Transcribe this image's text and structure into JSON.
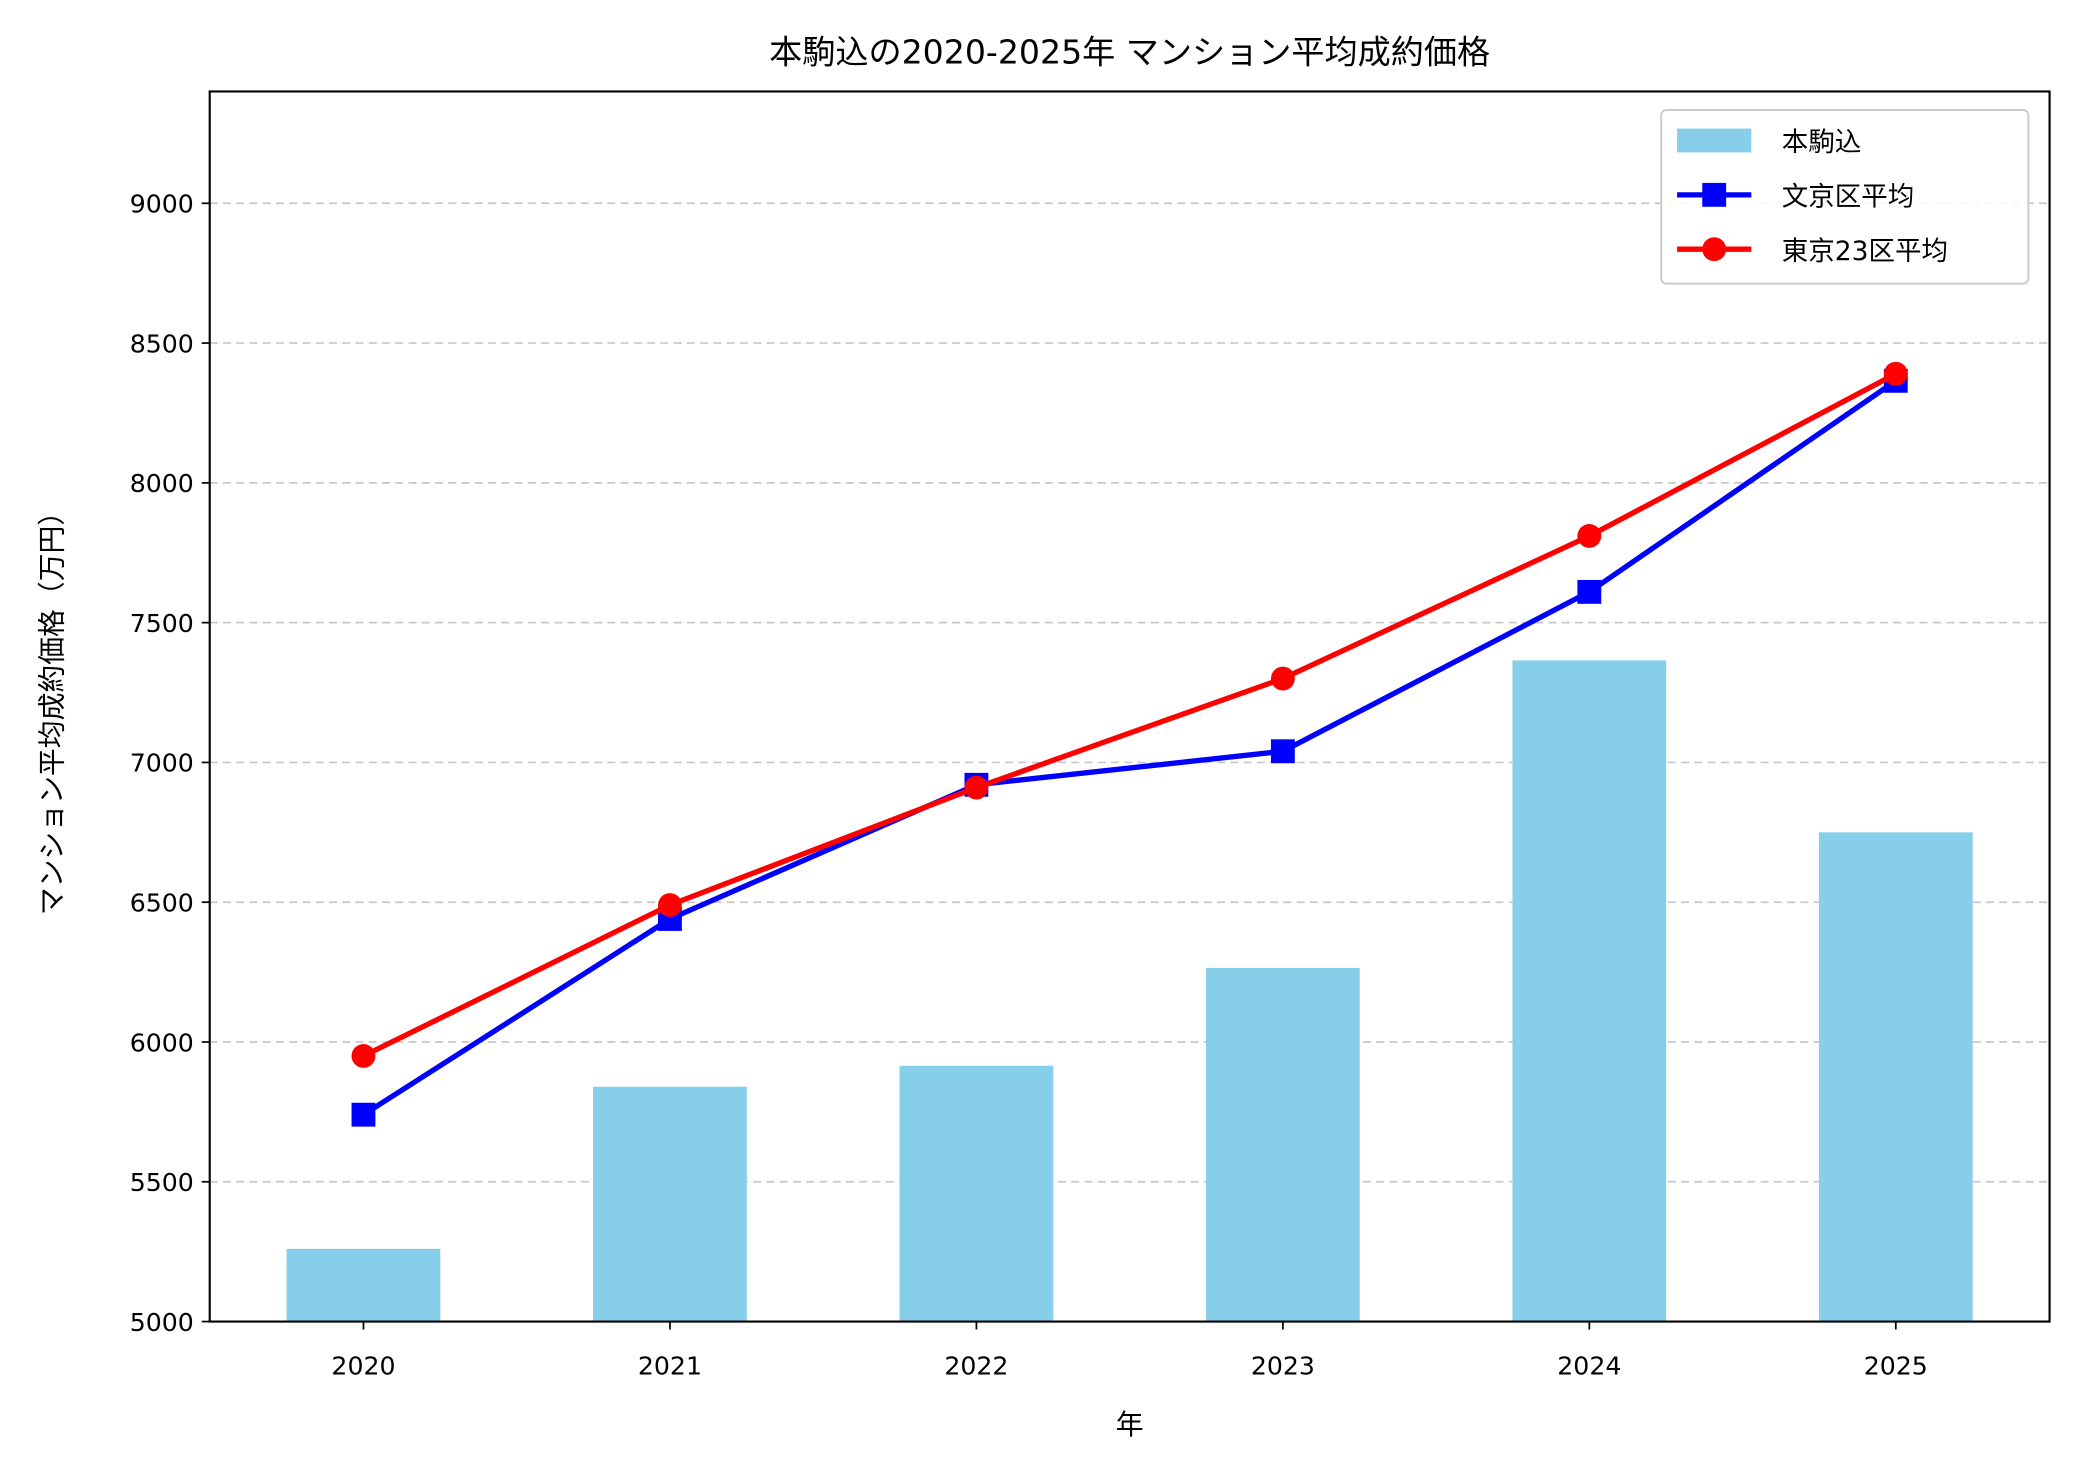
{
  "chart_data": {
    "type": "bar+line",
    "title": "本駒込の2020-2025年 マンション平均成約価格",
    "xlabel": "年",
    "ylabel": "マンション平均成約価格（万円）",
    "categories": [
      "2020",
      "2021",
      "2022",
      "2023",
      "2024",
      "2025"
    ],
    "ylim": [
      5000,
      9400
    ],
    "yticks": [
      5000,
      5500,
      6000,
      6500,
      7000,
      7500,
      8000,
      8500,
      9000
    ],
    "grid": "y dashed",
    "legend_position": "top-right",
    "series": [
      {
        "name": "本駒込",
        "kind": "bar",
        "color": "#87CEEB",
        "values": [
          5260,
          5840,
          5915,
          6265,
          7365,
          6750
        ]
      },
      {
        "name": "文京区平均",
        "kind": "line",
        "marker": "square",
        "color": "#0000FF",
        "values": [
          5740,
          6440,
          6920,
          7040,
          7610,
          8365
        ]
      },
      {
        "name": "東京23区平均",
        "kind": "line",
        "marker": "circle",
        "color": "#FF0000",
        "values": [
          5950,
          6490,
          6910,
          7300,
          7810,
          8390
        ]
      }
    ]
  }
}
